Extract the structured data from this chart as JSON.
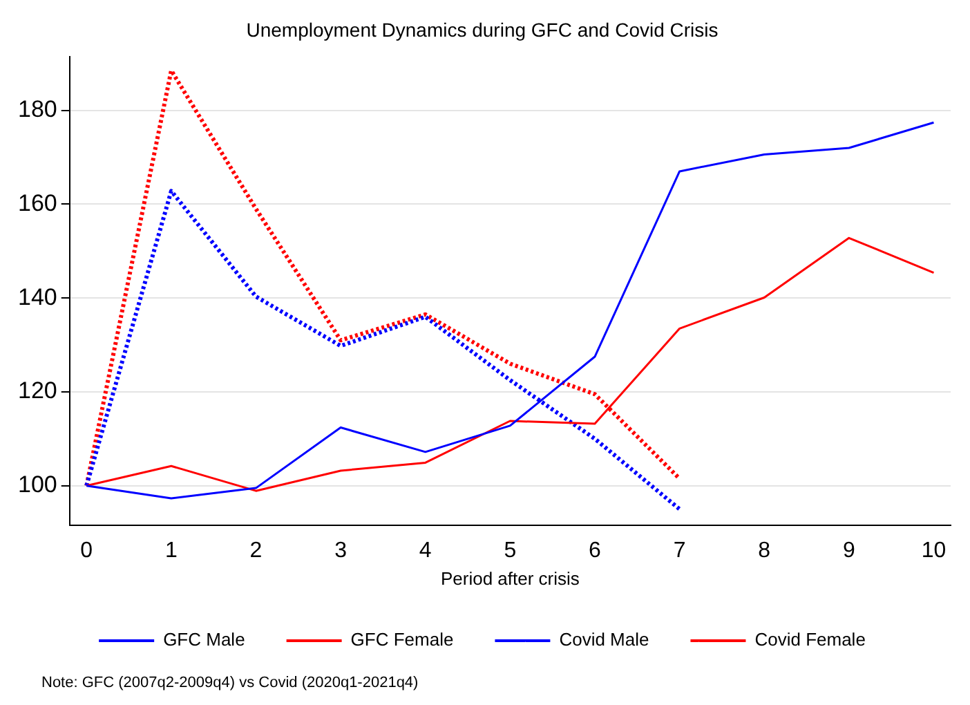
{
  "chart_data": {
    "type": "line",
    "title": "Unemployment Dynamics during GFC and Covid Crisis",
    "xlabel": "Period after crisis",
    "x": [
      0,
      1,
      2,
      3,
      4,
      5,
      6,
      7,
      8,
      9,
      10
    ],
    "series": [
      {
        "name": "GFC Male",
        "color": "#0000ff",
        "line_style": "solid",
        "values": [
          100,
          97.3,
          99.5,
          112.4,
          107.2,
          112.8,
          127.5,
          167,
          170.6,
          172,
          177.4
        ]
      },
      {
        "name": "GFC Female",
        "color": "#ff0000",
        "line_style": "solid",
        "values": [
          100,
          104.2,
          98.9,
          103.2,
          104.9,
          113.8,
          113.2,
          133.5,
          140.1,
          152.8,
          145.4
        ]
      },
      {
        "name": "Covid Male",
        "color": "#0000ff",
        "line_style": "dotted",
        "values": [
          100,
          162.8,
          140.3,
          129.8,
          136,
          122.5,
          110,
          95,
          null,
          null,
          null
        ]
      },
      {
        "name": "Covid Female",
        "color": "#ff0000",
        "line_style": "dotted",
        "values": [
          100,
          188.5,
          159,
          131,
          136.5,
          126,
          119.5,
          101.5,
          null,
          null,
          null
        ]
      }
    ],
    "xlim": [
      -0.2,
      10.2
    ],
    "xticks": [
      0,
      1,
      2,
      3,
      4,
      5,
      6,
      7,
      8,
      9,
      10
    ],
    "ylim": [
      91.5,
      191.5
    ],
    "yticks": [
      100,
      120,
      140,
      160,
      180
    ],
    "grid": "y",
    "legend": "bottom",
    "marker": "none",
    "annotations": [
      "Note: GFC (2007q2-2009q4) vs Covid (2020q1-2021q4)"
    ]
  }
}
